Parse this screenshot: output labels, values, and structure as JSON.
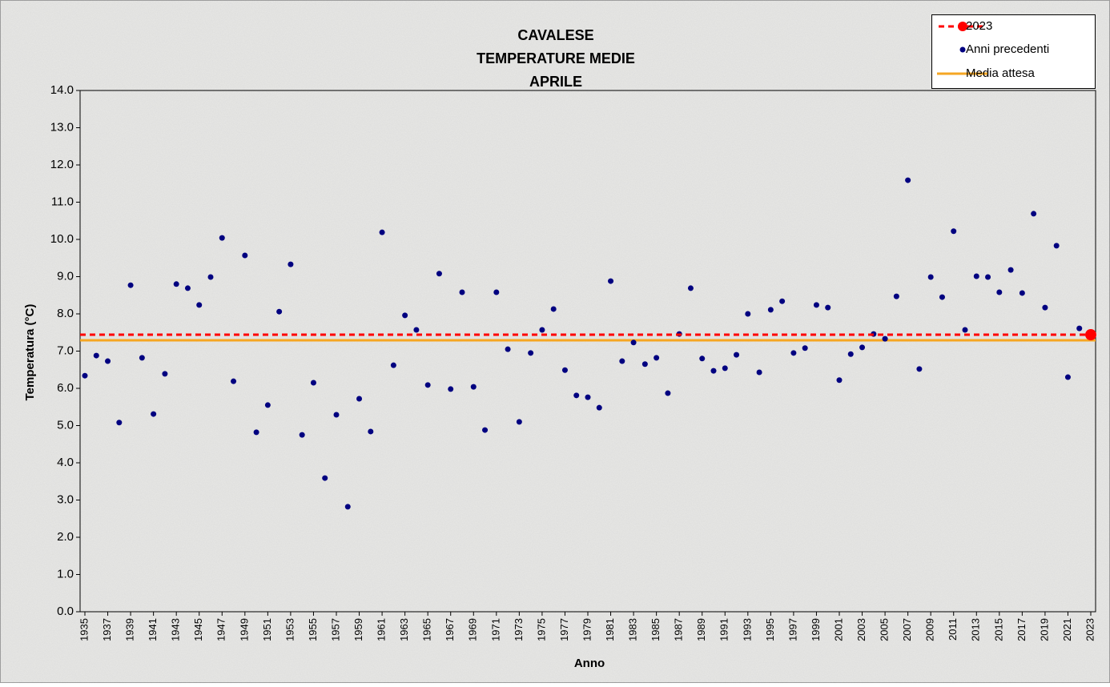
{
  "chart_data": {
    "type": "scatter",
    "title": [
      "CAVALESE",
      "TEMPERATURE MEDIE",
      "APRILE"
    ],
    "x_label": "Anno",
    "y_label": "Temperatura (°C)",
    "xlim": [
      1935,
      2023
    ],
    "xticks": [
      1935,
      1937,
      1939,
      1941,
      1943,
      1945,
      1947,
      1949,
      1951,
      1953,
      1955,
      1957,
      1959,
      1961,
      1963,
      1965,
      1967,
      1969,
      1971,
      1973,
      1975,
      1977,
      1979,
      1981,
      1983,
      1985,
      1987,
      1989,
      1991,
      1993,
      1995,
      1997,
      1999,
      2001,
      2003,
      2005,
      2007,
      2009,
      2011,
      2013,
      2015,
      2017,
      2019,
      2021,
      2023
    ],
    "ylim": [
      0,
      14
    ],
    "yticks": [
      {
        "value": 0,
        "label": "0.0"
      },
      {
        "value": 1,
        "label": "1.0"
      },
      {
        "value": 2,
        "label": "2.0"
      },
      {
        "value": 3,
        "label": "3.0"
      },
      {
        "value": 4,
        "label": "4.0"
      },
      {
        "value": 5,
        "label": "5.0"
      },
      {
        "value": 6,
        "label": "6.0"
      },
      {
        "value": 7,
        "label": "7.0"
      },
      {
        "value": 8,
        "label": "8.0"
      },
      {
        "value": 9,
        "label": "9.0"
      },
      {
        "value": 10,
        "label": "10.0"
      },
      {
        "value": 11,
        "label": "11.0"
      },
      {
        "value": 12,
        "label": "12.0"
      },
      {
        "value": 13,
        "label": "13.0"
      },
      {
        "value": 14,
        "label": "14.0"
      }
    ],
    "grid": false,
    "legend": "top-right",
    "series": [
      {
        "name": "2023",
        "color": "#ff0000",
        "kind": "dashed-line-marker",
        "x": [
          2023
        ],
        "values": [
          7.44
        ]
      },
      {
        "name": "Anni precedenti",
        "color": "#000080",
        "kind": "marker",
        "x": [
          1935,
          1936,
          1937,
          1938,
          1939,
          1940,
          1941,
          1942,
          1943,
          1944,
          1945,
          1946,
          1947,
          1948,
          1949,
          1950,
          1951,
          1952,
          1953,
          1954,
          1955,
          1956,
          1957,
          1958,
          1959,
          1960,
          1961,
          1962,
          1963,
          1964,
          1965,
          1966,
          1967,
          1968,
          1969,
          1970,
          1971,
          1972,
          1973,
          1974,
          1975,
          1976,
          1977,
          1978,
          1979,
          1980,
          1981,
          1982,
          1983,
          1984,
          1985,
          1986,
          1987,
          1988,
          1989,
          1990,
          1991,
          1992,
          1993,
          1994,
          1995,
          1996,
          1997,
          1998,
          1999,
          2000,
          2001,
          2002,
          2003,
          2004,
          2005,
          2006,
          2007,
          2008,
          2009,
          2010,
          2011,
          2012,
          2013,
          2014,
          2015,
          2016,
          2017,
          2018,
          2019,
          2020,
          2021,
          2022
        ],
        "values": [
          6.34,
          6.88,
          6.73,
          5.08,
          8.77,
          6.82,
          5.31,
          6.39,
          8.8,
          8.69,
          8.24,
          8.99,
          10.04,
          6.19,
          9.57,
          4.82,
          5.55,
          8.06,
          9.33,
          4.75,
          6.15,
          3.59,
          5.29,
          2.82,
          5.72,
          4.84,
          10.19,
          6.62,
          7.96,
          7.57,
          6.09,
          9.08,
          5.98,
          8.58,
          6.04,
          4.88,
          8.58,
          7.05,
          5.1,
          6.95,
          7.57,
          8.13,
          6.49,
          5.81,
          5.76,
          5.48,
          8.88,
          6.73,
          7.23,
          6.65,
          6.82,
          5.87,
          7.46,
          8.69,
          6.8,
          6.47,
          6.54,
          6.9,
          8.0,
          6.43,
          8.11,
          8.34,
          6.95,
          7.08,
          8.24,
          8.17,
          6.22,
          6.92,
          7.1,
          7.46,
          7.33,
          8.47,
          11.59,
          6.52,
          8.99,
          8.45,
          10.22,
          7.57,
          9.01,
          8.99,
          8.58,
          9.18,
          8.56,
          10.69,
          8.17,
          9.83,
          6.3,
          7.61
        ]
      },
      {
        "name": "Media attesa",
        "color": "#f5a623",
        "kind": "line",
        "values": [
          7.29
        ]
      }
    ]
  }
}
